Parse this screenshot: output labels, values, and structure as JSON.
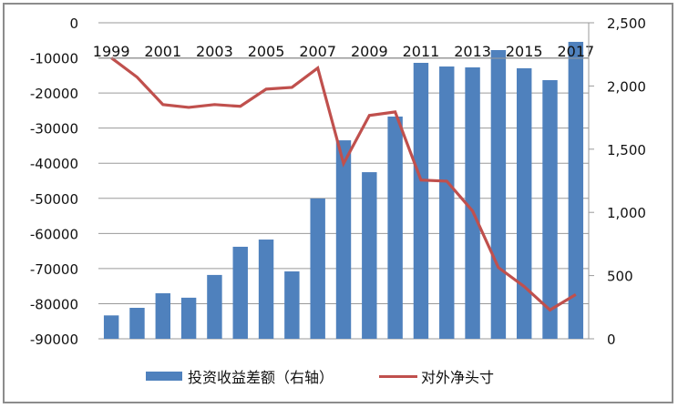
{
  "chart_data": {
    "type": "bar+line",
    "title": "",
    "categories": [
      "1999",
      "2000",
      "2001",
      "2002",
      "2003",
      "2004",
      "2005",
      "2006",
      "2007",
      "2008",
      "2009",
      "2010",
      "2011",
      "2012",
      "2013",
      "2014",
      "2015",
      "2016",
      "2017"
    ],
    "category_tick_labels": [
      "1999",
      "2001",
      "2003",
      "2005",
      "2007",
      "2009",
      "2011",
      "2013",
      "2015",
      "2017"
    ],
    "series": [
      {
        "name": "投资收益差额（右轴）",
        "type": "bar",
        "axis": "right",
        "color": "#4f81bd",
        "values": [
          185,
          245,
          360,
          325,
          505,
          728,
          785,
          533,
          1110,
          1570,
          1318,
          1758,
          2183,
          2154,
          2147,
          2284,
          2140,
          2046,
          2349
        ]
      },
      {
        "name": "对外净头寸",
        "type": "line",
        "axis": "left",
        "color": "#c0504d",
        "values": [
          -10000,
          -15500,
          -23300,
          -24100,
          -23300,
          -23800,
          -18900,
          -18400,
          -12900,
          -40100,
          -26400,
          -25400,
          -44800,
          -45100,
          -53600,
          -69700,
          -75100,
          -81800,
          -77400
        ]
      }
    ],
    "left_axis": {
      "ylim": [
        -90000,
        0
      ],
      "ticks": [
        "0",
        "-10000",
        "-20000",
        "-30000",
        "-40000",
        "-50000",
        "-60000",
        "-70000",
        "-80000",
        "-90000"
      ]
    },
    "right_axis": {
      "ylim": [
        0,
        2500
      ],
      "ticks": [
        "2,500",
        "2,000",
        "1,500",
        "1,000",
        "500",
        "0"
      ]
    },
    "grid": true,
    "legend_position": "bottom"
  },
  "legend": {
    "bar_label": "投资收益差额（右轴）",
    "line_label": "对外净头寸"
  }
}
